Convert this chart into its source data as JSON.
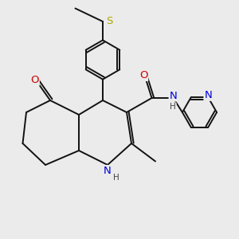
{
  "bg_color": "#ebebeb",
  "atom_colors": {
    "C": "#000000",
    "N": "#0000dd",
    "O": "#cc0000",
    "S": "#aaaa00",
    "H": "#444444"
  },
  "bond_color": "#111111",
  "bond_width": 1.4,
  "font_size": 8.5
}
